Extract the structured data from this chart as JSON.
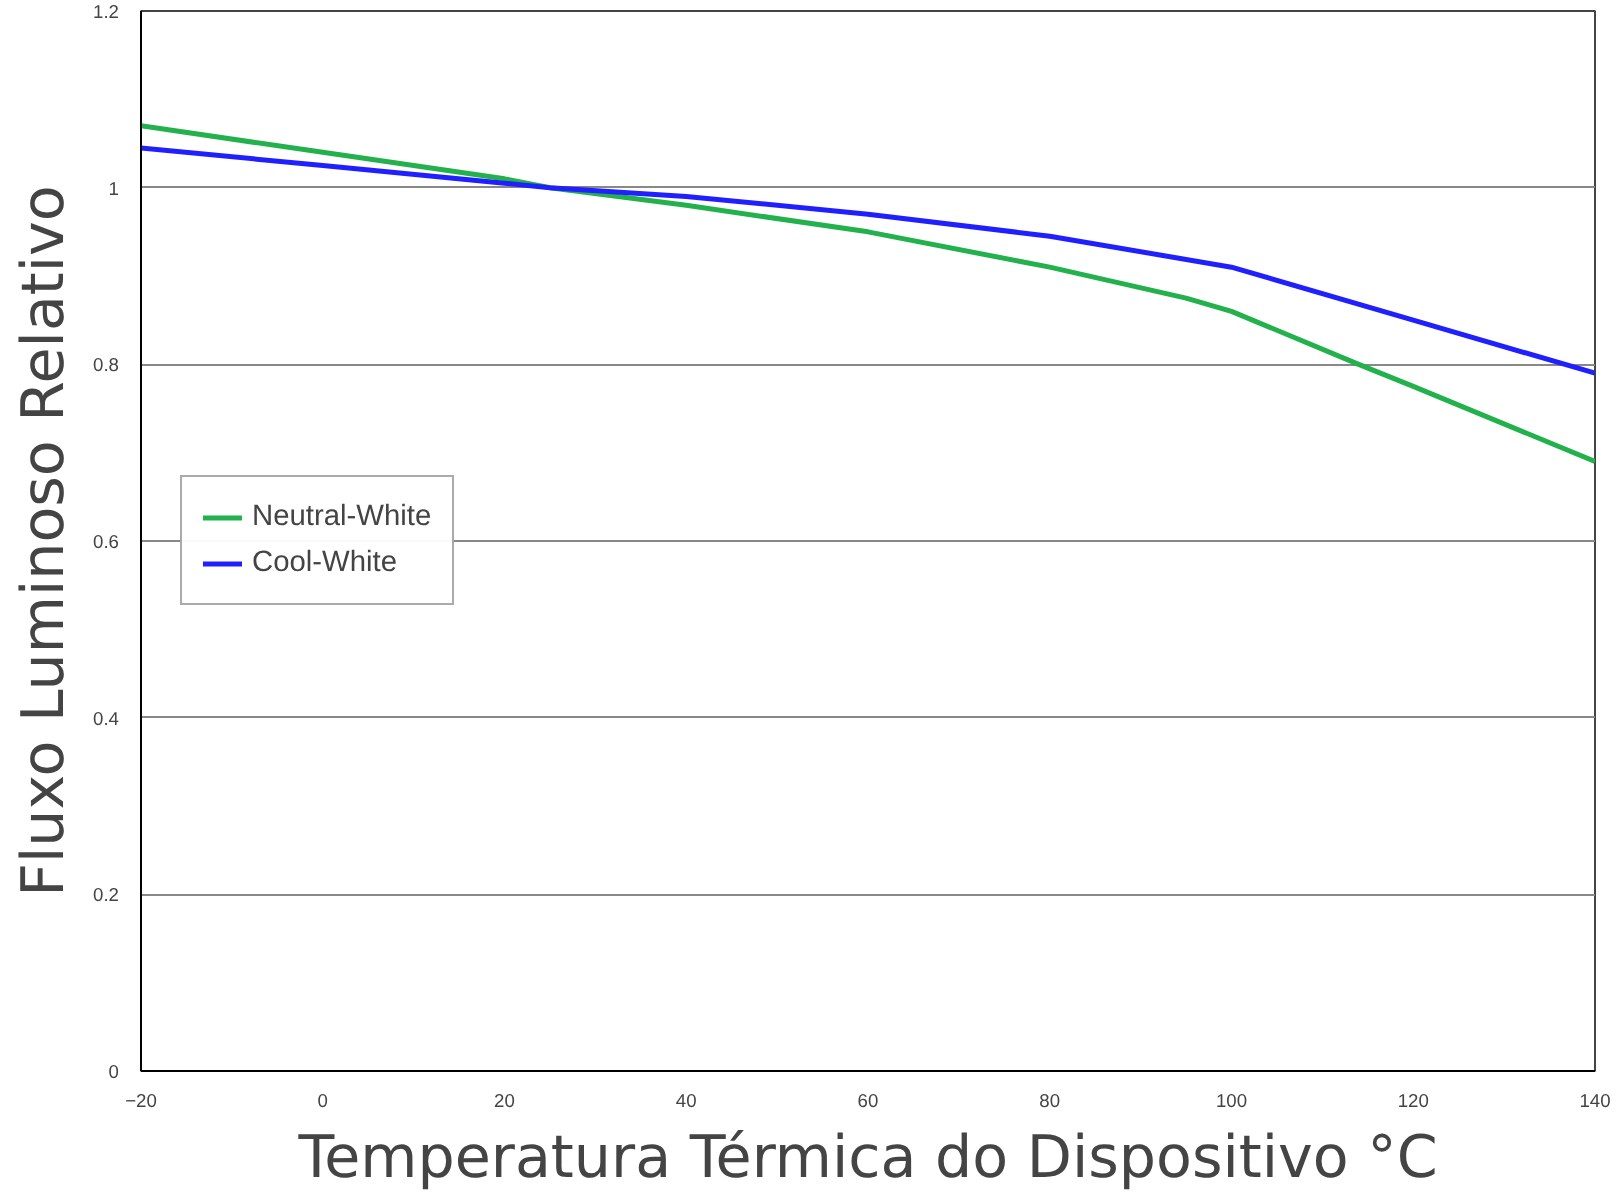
{
  "chart_data": {
    "type": "line",
    "xlabel": "Temperatura Térmica do Dispositivo °C",
    "ylabel": "Fluxo Luminoso Relativo",
    "xlim": [
      -20,
      140
    ],
    "xticks": [
      -20,
      0,
      20,
      40,
      60,
      80,
      100,
      120,
      140
    ],
    "ylim": [
      0,
      1.2
    ],
    "yticks": [
      0,
      0.2,
      0.4,
      0.6,
      0.8,
      1,
      1.2
    ],
    "grid": "y",
    "legend": "left",
    "marker": "none",
    "line_style": "solid",
    "series": [
      {
        "name": "Neutral-White",
        "color": "#22b14c",
        "x": [
          -20,
          0,
          20,
          25,
          40,
          60,
          80,
          95,
          100,
          114,
          120,
          140
        ],
        "values": [
          1.07,
          1.04,
          1.01,
          1.0,
          0.98,
          0.95,
          0.91,
          0.875,
          0.86,
          0.8,
          0.775,
          0.69
        ]
      },
      {
        "name": "Cool-White",
        "color": "#2020ff",
        "x": [
          -20,
          0,
          20,
          25,
          40,
          60,
          80,
          100,
          120,
          140
        ],
        "values": [
          1.045,
          1.025,
          1.005,
          1.0,
          0.99,
          0.97,
          0.945,
          0.91,
          0.85,
          0.79
        ]
      }
    ]
  }
}
